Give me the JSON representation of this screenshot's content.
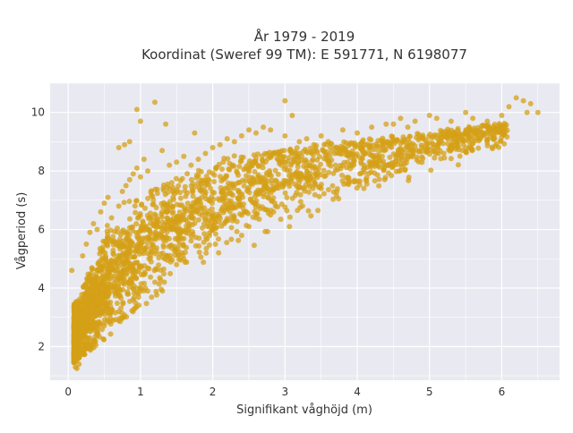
{
  "chart_data": {
    "type": "scatter",
    "title_line1": "År 1979 - 2019",
    "title_line2": "Koordinat (Sweref 99 TM): E 591771, N 6198077",
    "xlabel": "Signifikant våghöjd (m)",
    "ylabel": "Vågperiod (s)",
    "xlim": [
      -0.25,
      6.8
    ],
    "ylim": [
      0.85,
      11.0
    ],
    "x_ticks": [
      0,
      1,
      2,
      3,
      4,
      5,
      6
    ],
    "y_ticks": [
      2,
      4,
      6,
      8,
      10
    ],
    "grid": true,
    "colors": {
      "marker": "#d4a017",
      "plot_bg": "#e9e9f1",
      "grid": "#ffffff"
    },
    "marker_opacity": 0.75,
    "points": [
      [
        0.05,
        4.6
      ],
      [
        0.08,
        1.8
      ],
      [
        0.1,
        1.3
      ],
      [
        0.12,
        1.25
      ],
      [
        0.15,
        1.4
      ],
      [
        0.1,
        2.2
      ],
      [
        0.2,
        5.1
      ],
      [
        0.25,
        5.5
      ],
      [
        0.3,
        5.9
      ],
      [
        0.35,
        6.2
      ],
      [
        0.4,
        6.0
      ],
      [
        0.45,
        6.6
      ],
      [
        0.5,
        6.9
      ],
      [
        0.55,
        7.1
      ],
      [
        0.6,
        6.4
      ],
      [
        0.7,
        6.8
      ],
      [
        0.75,
        7.3
      ],
      [
        0.8,
        7.5
      ],
      [
        0.85,
        7.7
      ],
      [
        0.9,
        7.9
      ],
      [
        0.95,
        8.1
      ],
      [
        1.0,
        7.8
      ],
      [
        1.05,
        8.4
      ],
      [
        1.1,
        8.0
      ],
      [
        0.7,
        8.8
      ],
      [
        0.78,
        8.9
      ],
      [
        0.85,
        9.0
      ],
      [
        1.0,
        9.7
      ],
      [
        0.95,
        10.1
      ],
      [
        1.2,
        10.35
      ],
      [
        1.3,
        8.7
      ],
      [
        1.35,
        9.6
      ],
      [
        1.4,
        8.2
      ],
      [
        1.5,
        8.3
      ],
      [
        1.6,
        8.5
      ],
      [
        1.7,
        8.2
      ],
      [
        1.75,
        9.3
      ],
      [
        1.8,
        8.4
      ],
      [
        1.9,
        8.6
      ],
      [
        2.0,
        8.8
      ],
      [
        2.1,
        8.9
      ],
      [
        2.2,
        9.1
      ],
      [
        2.3,
        9.0
      ],
      [
        2.4,
        9.2
      ],
      [
        2.5,
        9.4
      ],
      [
        2.6,
        9.3
      ],
      [
        2.7,
        9.5
      ],
      [
        2.8,
        9.4
      ],
      [
        3.0,
        10.4
      ],
      [
        3.1,
        9.9
      ],
      [
        3.0,
        9.2
      ],
      [
        3.2,
        9.0
      ],
      [
        3.3,
        9.1
      ],
      [
        3.4,
        8.9
      ],
      [
        3.5,
        9.2
      ],
      [
        3.6,
        9.0
      ],
      [
        3.8,
        9.4
      ],
      [
        4.0,
        9.3
      ],
      [
        4.2,
        9.5
      ],
      [
        4.4,
        9.6
      ],
      [
        4.5,
        9.6
      ],
      [
        4.6,
        9.8
      ],
      [
        4.7,
        9.5
      ],
      [
        4.8,
        9.7
      ],
      [
        5.0,
        9.9
      ],
      [
        5.1,
        9.8
      ],
      [
        5.3,
        9.7
      ],
      [
        5.5,
        10.0
      ],
      [
        5.45,
        9.2
      ],
      [
        5.6,
        9.8
      ],
      [
        5.8,
        9.7
      ],
      [
        6.0,
        9.9
      ],
      [
        6.1,
        10.2
      ],
      [
        6.2,
        10.5
      ],
      [
        6.3,
        10.4
      ],
      [
        6.35,
        10.0
      ],
      [
        6.5,
        10.0
      ],
      [
        6.4,
        10.3
      ],
      [
        3.7,
        8.2
      ],
      [
        3.9,
        8.6
      ],
      [
        4.1,
        8.1
      ],
      [
        4.3,
        8.5
      ],
      [
        2.4,
        5.8
      ],
      [
        2.5,
        6.1
      ],
      [
        2.6,
        6.4
      ],
      [
        2.8,
        6.5
      ],
      [
        1.5,
        4.8
      ],
      [
        1.6,
        5.0
      ],
      [
        1.2,
        4.2
      ],
      [
        1.1,
        3.9
      ],
      [
        0.9,
        3.6
      ],
      [
        0.7,
        3.2
      ],
      [
        0.5,
        2.8
      ],
      [
        0.4,
        2.5
      ],
      [
        0.3,
        2.3
      ],
      [
        0.2,
        1.9
      ]
    ]
  }
}
